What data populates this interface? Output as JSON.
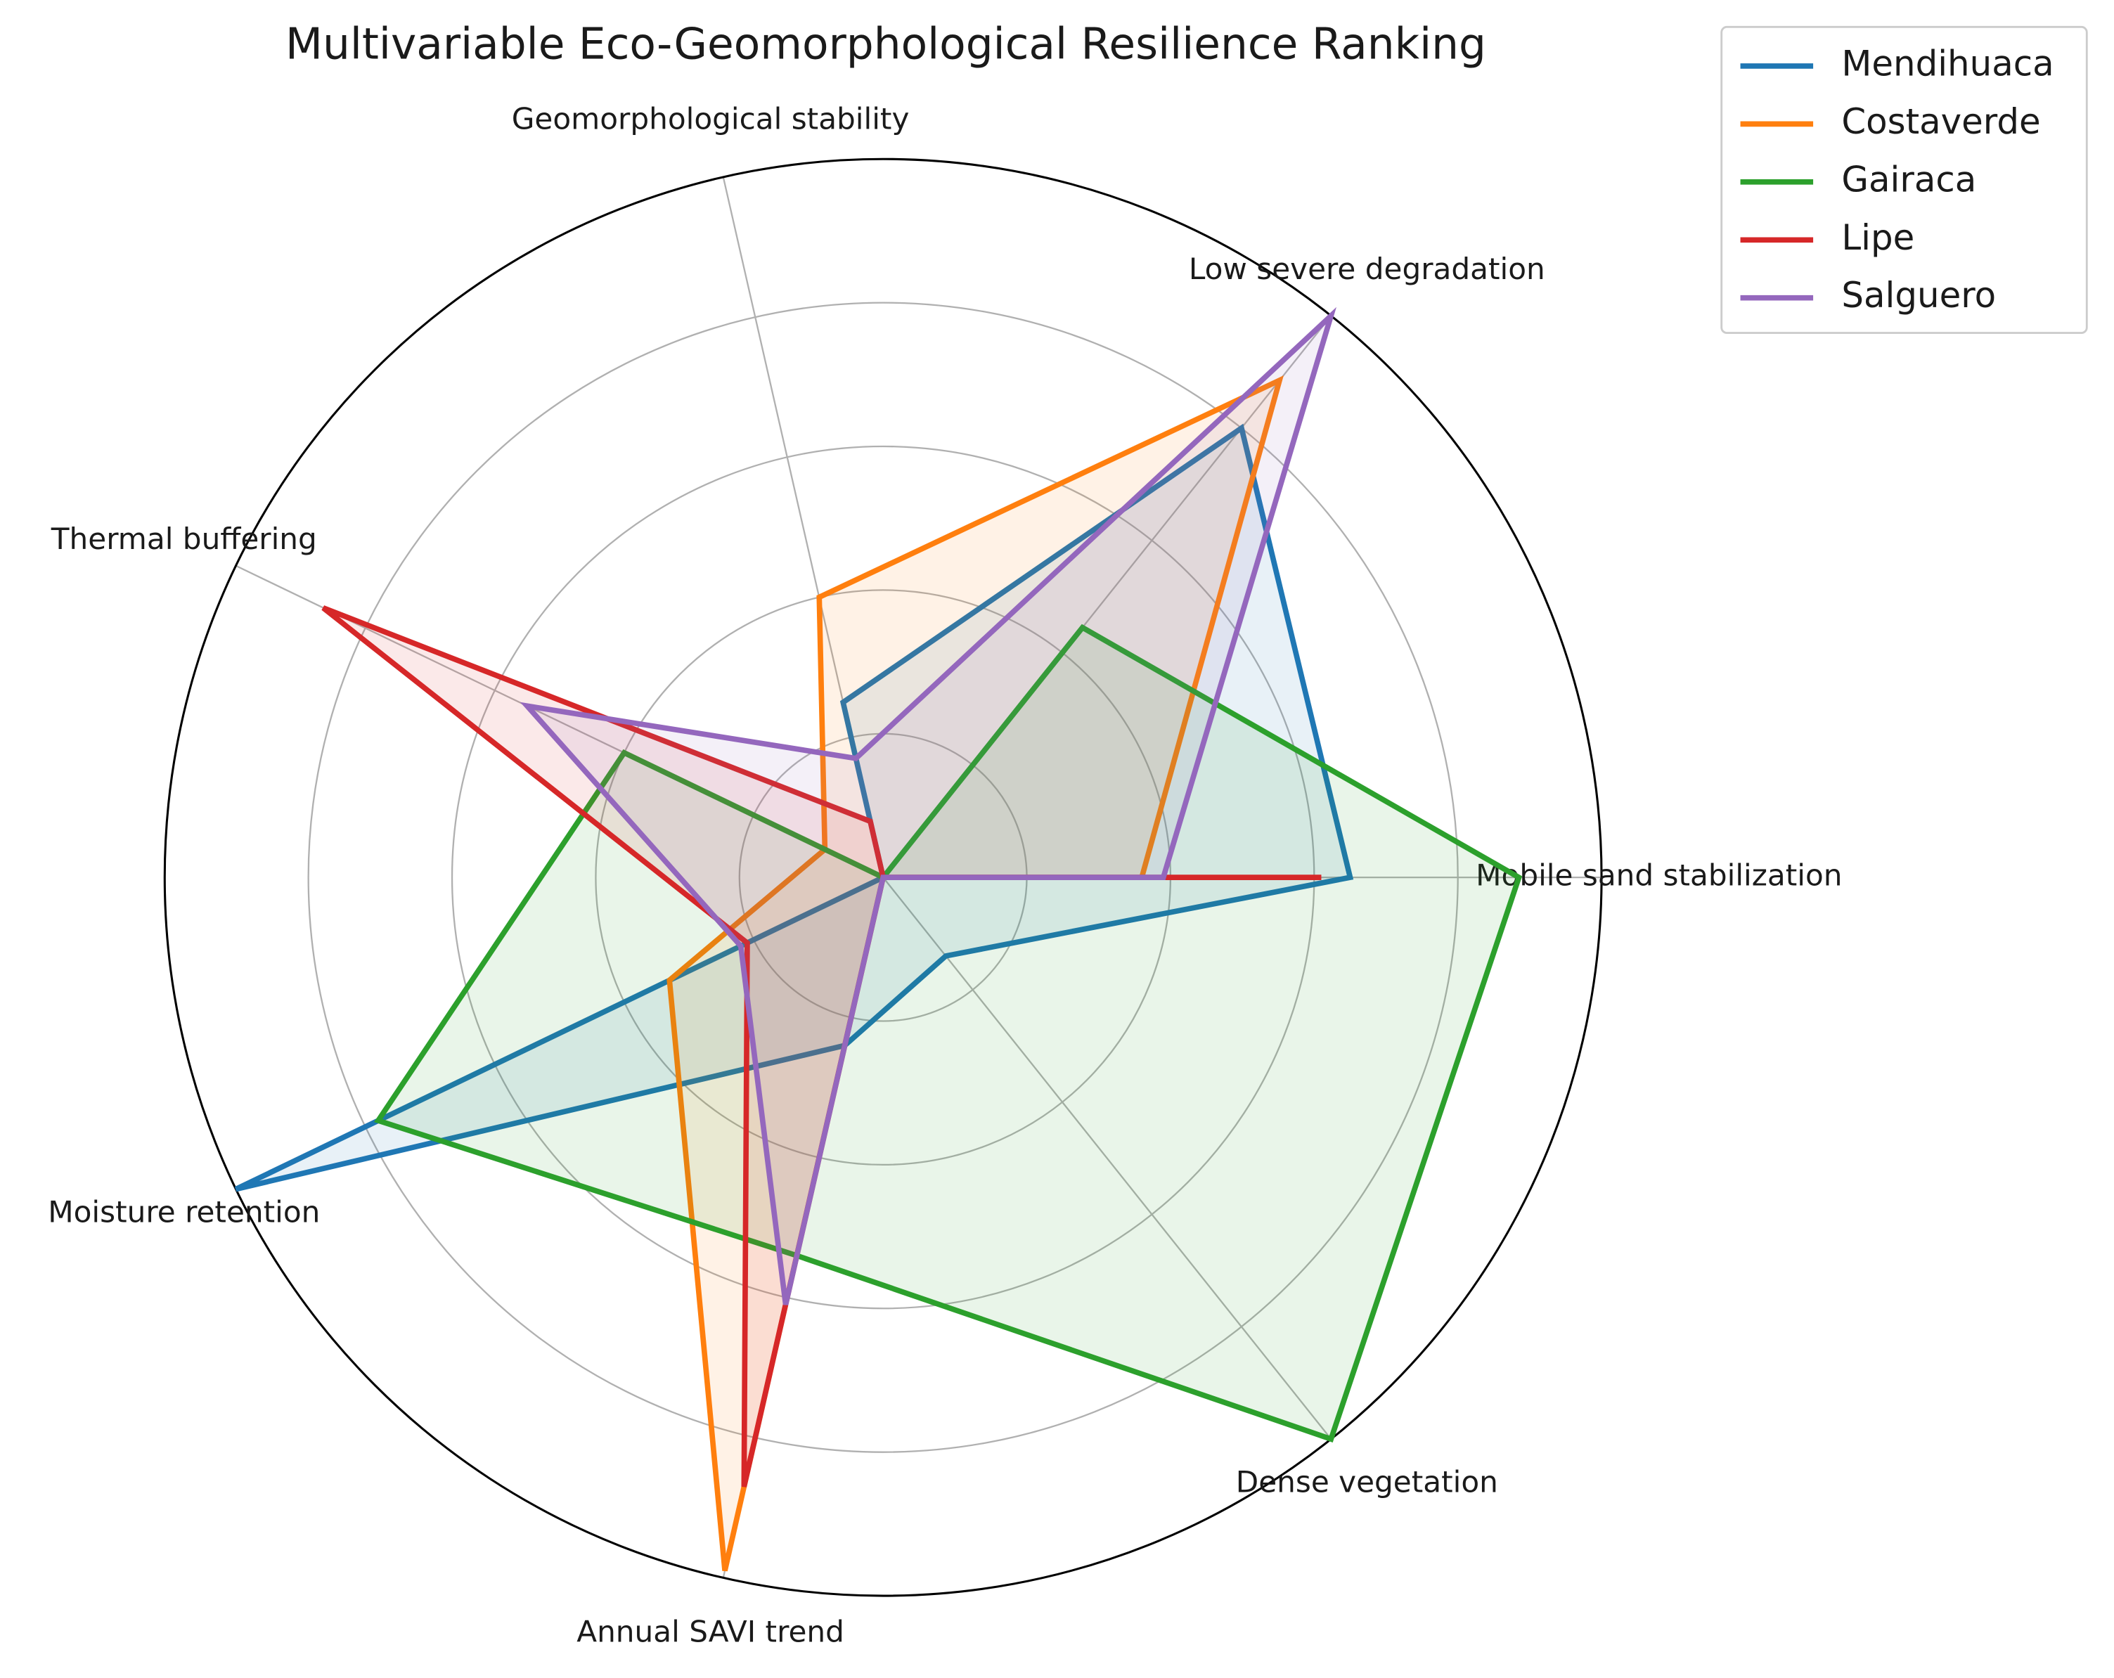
{
  "chart_data": {
    "type": "radar",
    "title": "Multivariable Eco-Geomorphological Resilience Ranking",
    "categories": [
      "Mobile sand stabilization",
      "Low severe degradation",
      "Geomorphological stability",
      "Thermal buffering",
      "Moisture retention",
      "Annual SAVI trend",
      "Dense vegetation"
    ],
    "series": [
      {
        "name": "Mendihuaca",
        "color": "#1f77b4",
        "values": [
          0.65,
          0.8,
          0.25,
          0,
          1.0,
          0.24,
          0.14
        ]
      },
      {
        "name": "Costaverde",
        "color": "#ff7f0e",
        "values": [
          0.36,
          0.885,
          0.4,
          0.09,
          0.33,
          0.99,
          0
        ]
      },
      {
        "name": "Gairaca",
        "color": "#2ca02c",
        "values": [
          0.885,
          0.445,
          0,
          0.4,
          0.78,
          0.54,
          1.0
        ]
      },
      {
        "name": "Lipe",
        "color": "#d62728",
        "values": [
          0.61,
          0,
          0.08,
          0.865,
          0.21,
          0.87,
          0
        ]
      },
      {
        "name": "Salguero",
        "color": "#9467bd",
        "values": [
          0.39,
          1.0,
          0.17,
          0.55,
          0.22,
          0.61,
          0
        ]
      }
    ],
    "ylim": [
      0,
      1
    ],
    "yticks": [
      0.2,
      0.4,
      0.6,
      0.8,
      1.0
    ],
    "grid": true,
    "legend": "upper right"
  }
}
